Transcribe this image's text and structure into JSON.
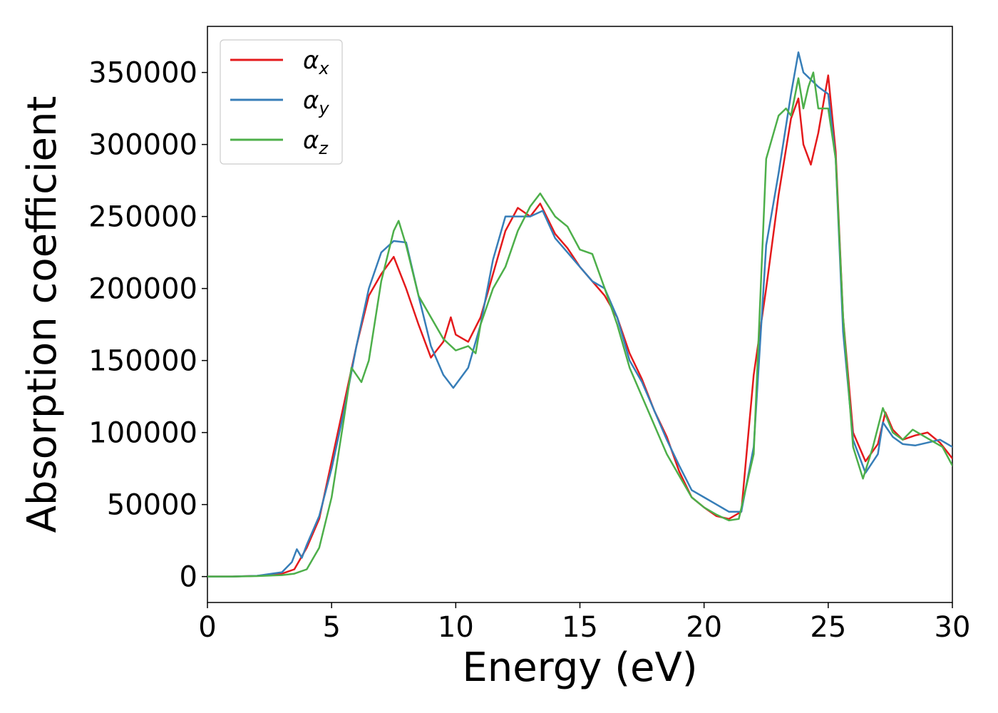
{
  "chart_data": {
    "type": "line",
    "xlabel": "Energy (eV)",
    "ylabel": "Absorption coefficient",
    "xlim": [
      0,
      30
    ],
    "ylim": [
      -18000,
      382000
    ],
    "xticks": [
      0,
      5,
      10,
      15,
      20,
      25,
      30
    ],
    "yticks": [
      0,
      50000,
      100000,
      150000,
      200000,
      250000,
      300000,
      350000
    ],
    "grid": false,
    "legend_position": "top-left",
    "series": [
      {
        "name": "α_x",
        "symbol": "α",
        "subscript": "x",
        "color": "#e41a1c",
        "x": [
          0,
          1,
          2,
          3,
          3.5,
          4,
          4.5,
          5,
          5.5,
          6,
          6.5,
          7,
          7.5,
          8,
          8.5,
          9,
          9.5,
          9.8,
          10,
          10.5,
          11,
          11.5,
          12,
          12.5,
          13,
          13.4,
          14,
          14.5,
          15,
          15.5,
          16,
          16.5,
          17,
          17.5,
          18,
          18.5,
          19,
          19.5,
          20,
          20.5,
          21,
          21.5,
          22,
          22.5,
          23,
          23.5,
          23.8,
          24,
          24.3,
          24.6,
          25,
          25.3,
          25.6,
          26,
          26.5,
          27,
          27.3,
          27.6,
          28,
          28.5,
          29,
          29.5,
          30
        ],
        "y": [
          0,
          0,
          500,
          2000,
          5000,
          20000,
          40000,
          80000,
          120000,
          160000,
          195000,
          210000,
          222000,
          200000,
          175000,
          152000,
          163000,
          180000,
          168000,
          163000,
          180000,
          210000,
          240000,
          256000,
          250000,
          259000,
          238000,
          228000,
          215000,
          205000,
          195000,
          180000,
          155000,
          137000,
          115000,
          97000,
          73000,
          55000,
          48000,
          42000,
          40000,
          45000,
          140000,
          200000,
          265000,
          318000,
          332000,
          300000,
          286000,
          308000,
          348000,
          295000,
          180000,
          100000,
          80000,
          92000,
          114000,
          102000,
          95000,
          98000,
          100000,
          93000,
          82000
        ]
      },
      {
        "name": "α_y",
        "symbol": "α",
        "subscript": "y",
        "color": "#377eb8",
        "x": [
          0,
          1,
          2,
          3,
          3.4,
          3.6,
          3.8,
          4,
          4.5,
          5,
          5.5,
          6,
          6.5,
          7,
          7.5,
          8,
          8.5,
          9,
          9.5,
          9.9,
          10.5,
          11,
          11.5,
          12,
          12.5,
          13,
          13.5,
          14,
          14.5,
          15,
          15.5,
          16,
          16.5,
          17,
          17.5,
          18,
          18.5,
          19,
          19.5,
          20,
          20.5,
          21,
          21.5,
          22,
          22.5,
          23,
          23.5,
          23.8,
          24,
          24.3,
          24.6,
          25,
          25.3,
          25.6,
          26,
          26.5,
          27,
          27.2,
          27.6,
          28,
          28.5,
          29,
          29.5,
          30
        ],
        "y": [
          0,
          0,
          500,
          3000,
          10000,
          19000,
          13000,
          22000,
          42000,
          75000,
          115000,
          160000,
          200000,
          225000,
          233000,
          232000,
          195000,
          160000,
          140000,
          131000,
          145000,
          175000,
          220000,
          250000,
          250000,
          250000,
          254000,
          235000,
          225000,
          215000,
          205000,
          200000,
          180000,
          150000,
          135000,
          115000,
          95000,
          77000,
          60000,
          55000,
          50000,
          45000,
          45000,
          90000,
          230000,
          280000,
          335000,
          364000,
          350000,
          345000,
          340000,
          335000,
          290000,
          170000,
          95000,
          72000,
          85000,
          107000,
          97000,
          92000,
          91000,
          93000,
          95000,
          90000
        ]
      },
      {
        "name": "α_z",
        "symbol": "α",
        "subscript": "z",
        "color": "#4daf4a",
        "x": [
          0,
          1,
          2,
          3,
          3.5,
          4,
          4.5,
          5,
          5.5,
          5.8,
          6.2,
          6.5,
          7,
          7.5,
          7.7,
          8,
          8.5,
          9,
          9.5,
          10,
          10.5,
          10.8,
          11,
          11.5,
          12,
          12.5,
          13,
          13.4,
          14,
          14.5,
          15,
          15.5,
          16,
          16.5,
          17,
          17.5,
          18,
          18.5,
          19,
          19.5,
          20,
          20.5,
          21,
          21.4,
          22,
          22.5,
          23,
          23.3,
          23.5,
          23.8,
          24,
          24.2,
          24.4,
          24.6,
          25,
          25.3,
          25.6,
          26,
          26.4,
          26.8,
          27.2,
          27.6,
          28,
          28.4,
          28.8,
          29.2,
          29.6,
          30
        ],
        "y": [
          0,
          0,
          300,
          1000,
          2000,
          5000,
          20000,
          55000,
          110000,
          145000,
          135000,
          150000,
          205000,
          240000,
          247000,
          230000,
          195000,
          180000,
          165000,
          157000,
          160000,
          155000,
          175000,
          200000,
          215000,
          240000,
          257000,
          266000,
          250000,
          243000,
          227000,
          224000,
          200000,
          175000,
          145000,
          125000,
          105000,
          85000,
          70000,
          55000,
          48000,
          43000,
          39000,
          40000,
          85000,
          290000,
          320000,
          325000,
          320000,
          346000,
          325000,
          340000,
          350000,
          325000,
          325000,
          290000,
          180000,
          90000,
          68000,
          90000,
          117000,
          100000,
          95000,
          102000,
          98000,
          94000,
          90000,
          77000
        ]
      }
    ]
  }
}
